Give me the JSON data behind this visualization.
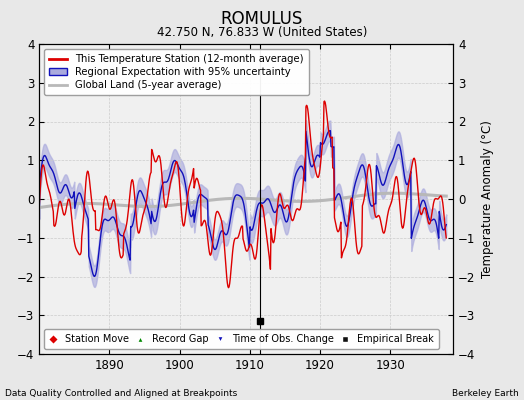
{
  "title": "ROMULUS",
  "subtitle": "42.750 N, 76.833 W (United States)",
  "ylabel": "Temperature Anomaly (°C)",
  "xlabel_bottom_left": "Data Quality Controlled and Aligned at Breakpoints",
  "xlabel_bottom_right": "Berkeley Earth",
  "ylim": [
    -4,
    4
  ],
  "xlim": [
    1880,
    1939
  ],
  "xticks": [
    1890,
    1900,
    1910,
    1920,
    1930
  ],
  "yticks": [
    -4,
    -3,
    -2,
    -1,
    0,
    1,
    2,
    3,
    4
  ],
  "bg_color": "#e8e8e8",
  "plot_bg_color": "#f0f0f0",
  "grid_color": "#cccccc",
  "red_color": "#dd0000",
  "blue_color": "#1111bb",
  "blue_fill_color": "#aaaadd",
  "gray_color": "#b8b8b8",
  "legend_labels": [
    "This Temperature Station (12-month average)",
    "Regional Expectation with 95% uncertainty",
    "Global Land (5-year average)"
  ],
  "bottom_legend": [
    {
      "marker": "D",
      "color": "#dd0000",
      "label": "Station Move"
    },
    {
      "marker": "^",
      "color": "#008800",
      "label": "Record Gap"
    },
    {
      "marker": "v",
      "color": "#1111bb",
      "label": "Time of Obs. Change"
    },
    {
      "marker": "s",
      "color": "#111111",
      "label": "Empirical Break"
    }
  ],
  "empirical_break_x": 1911.5
}
